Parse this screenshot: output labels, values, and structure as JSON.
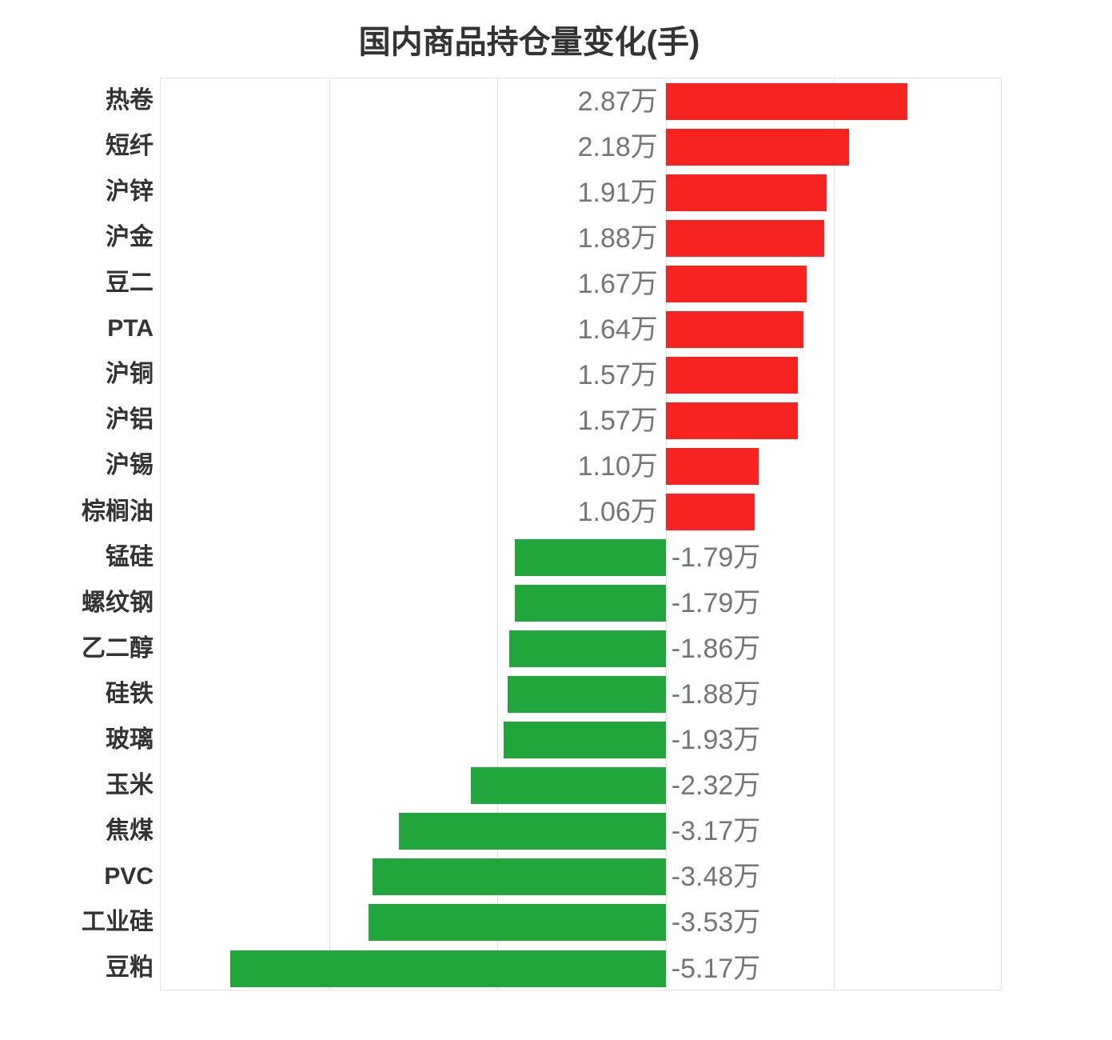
{
  "chart_data": {
    "type": "bar",
    "orientation": "horizontal",
    "title": "国内商品持仓量变化(手)",
    "unit": "万",
    "categories": [
      "热卷",
      "短纤",
      "沪锌",
      "沪金",
      "豆二",
      "PTA",
      "沪铜",
      "沪铝",
      "沪锡",
      "棕榈油",
      "锰硅",
      "螺纹钢",
      "乙二醇",
      "硅铁",
      "玻璃",
      "玉米",
      "焦煤",
      "PVC",
      "工业硅",
      "豆粕"
    ],
    "values": [
      2.87,
      2.18,
      1.91,
      1.88,
      1.67,
      1.64,
      1.57,
      1.57,
      1.1,
      1.06,
      -1.79,
      -1.79,
      -1.86,
      -1.88,
      -1.93,
      -2.32,
      -3.17,
      -3.48,
      -3.53,
      -5.17
    ],
    "value_labels": [
      "2.87万",
      "2.18万",
      "1.91万",
      "1.88万",
      "1.67万",
      "1.64万",
      "1.57万",
      "1.57万",
      "1.10万",
      "1.06万",
      "-1.79万",
      "-1.79万",
      "-1.86万",
      "-1.88万",
      "-1.93万",
      "-2.32万",
      "-3.17万",
      "-3.48万",
      "-3.53万",
      "-5.17万"
    ],
    "xlim": [
      -6,
      4
    ],
    "x_tick_step": 2,
    "grid": true,
    "legend": "none",
    "x_tick_labels_visible": false,
    "colors": {
      "positive_bar": "#f62320",
      "negative_bar": "#21a63c",
      "value_label": "#757575",
      "category_label": "#333333",
      "title": "#333333",
      "gridline": "#e2e2e2"
    }
  }
}
